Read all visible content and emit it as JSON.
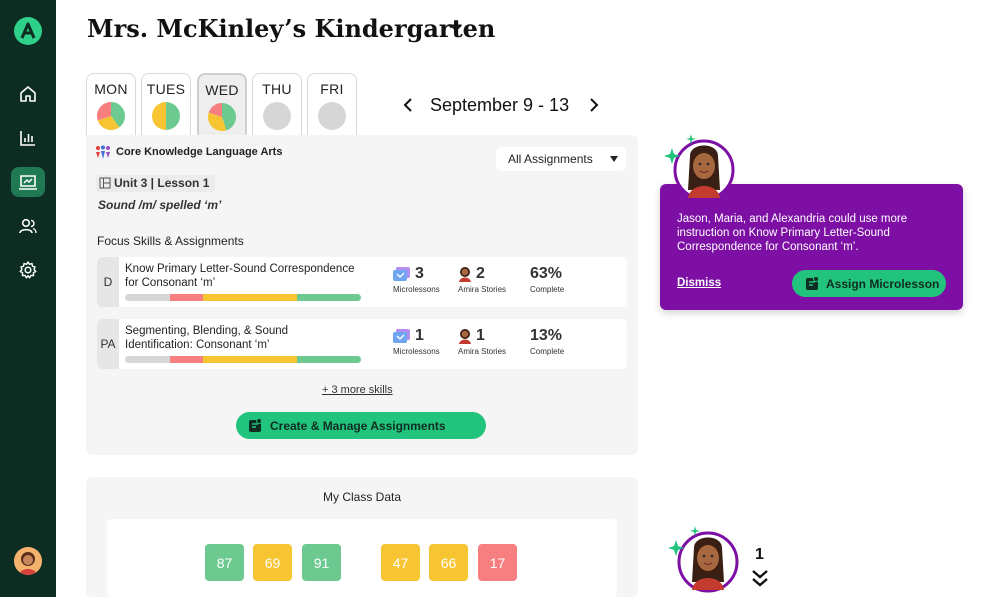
{
  "sidebar": {
    "logo_letter": "A",
    "nav": [
      {
        "name": "home",
        "icon": "home-icon"
      },
      {
        "name": "reports",
        "icon": "bar-chart-icon"
      },
      {
        "name": "lessons",
        "icon": "teacher-board-icon",
        "active": true
      },
      {
        "name": "students",
        "icon": "users-icon"
      },
      {
        "name": "settings",
        "icon": "gear-icon"
      }
    ],
    "avatar_icon": "user-avatar"
  },
  "header": {
    "class_title": "Mrs. McKinley’s Kindergarten"
  },
  "days": [
    {
      "label": "MON",
      "pie": [
        0.4,
        0.3,
        0.3
      ]
    },
    {
      "label": "TUES",
      "pie": [
        0.5,
        0.5,
        0
      ]
    },
    {
      "label": "WED",
      "pie": [
        0.45,
        0.35,
        0.2
      ],
      "selected": true
    },
    {
      "label": "THU",
      "pie": null
    },
    {
      "label": "FRI",
      "pie": null
    }
  ],
  "week": {
    "label": "September 9 - 13",
    "prev_icon": "chevron-left-icon",
    "next_icon": "chevron-right-icon"
  },
  "curriculum": {
    "title": "Core Knowledge Language Arts",
    "filter_value": "All Assignments",
    "unit": "Unit 3 | Lesson 1",
    "lesson_subtitle": "Sound /m/ spelled ‘m’",
    "focus_heading": "Focus Skills & Assignments",
    "skills": [
      {
        "code": "D",
        "name": "Know Primary Letter-Sound Correspondence for Consonant ‘m’",
        "bar": [
          0.19,
          0.14,
          0.4,
          0.27
        ],
        "microlessons": "3",
        "microlessons_label": "Microlessons",
        "stories": "2",
        "stories_label": "Amira Stories",
        "complete": "63%",
        "complete_label": "Complete"
      },
      {
        "code": "PA",
        "name": "Segmenting, Blending, & Sound Identification: Consonant ‘m’",
        "bar": [
          0.19,
          0.14,
          0.4,
          0.27
        ],
        "microlessons": "1",
        "microlessons_label": "Microlessons",
        "stories": "1",
        "stories_label": "Amira Stories",
        "complete": "13%",
        "complete_label": "Complete"
      }
    ],
    "more_skills": "+ 3 more skills",
    "create_button": "Create & Manage Assignments"
  },
  "class_data": {
    "title": "My Class Data",
    "scores": [
      {
        "value": "87",
        "color": "#6cc98f"
      },
      {
        "value": "69",
        "color": "#f7c531"
      },
      {
        "value": "91",
        "color": "#6cc98f"
      },
      {
        "value": "47",
        "color": "#f7c531"
      },
      {
        "value": "66",
        "color": "#f7c531"
      },
      {
        "value": "17",
        "color": "#f77f80"
      }
    ]
  },
  "notification": {
    "message": "Jason, Maria, and Alexandria could use more instruction on Know Primary Letter-Sound Correspondence for Consonant ‘m’.",
    "dismiss": "Dismiss",
    "assign_button": "Assign Microlesson"
  },
  "assistant": {
    "count": "1",
    "expand_icon": "double-chevron-down-icon"
  },
  "colors": {
    "green": "#6cc98f",
    "yellow": "#f7c531",
    "red": "#f77f80",
    "grey": "#d6d6d6",
    "purple": "#7d0fa5",
    "accent": "#22c47d",
    "sidebar": "#0e2d22"
  }
}
